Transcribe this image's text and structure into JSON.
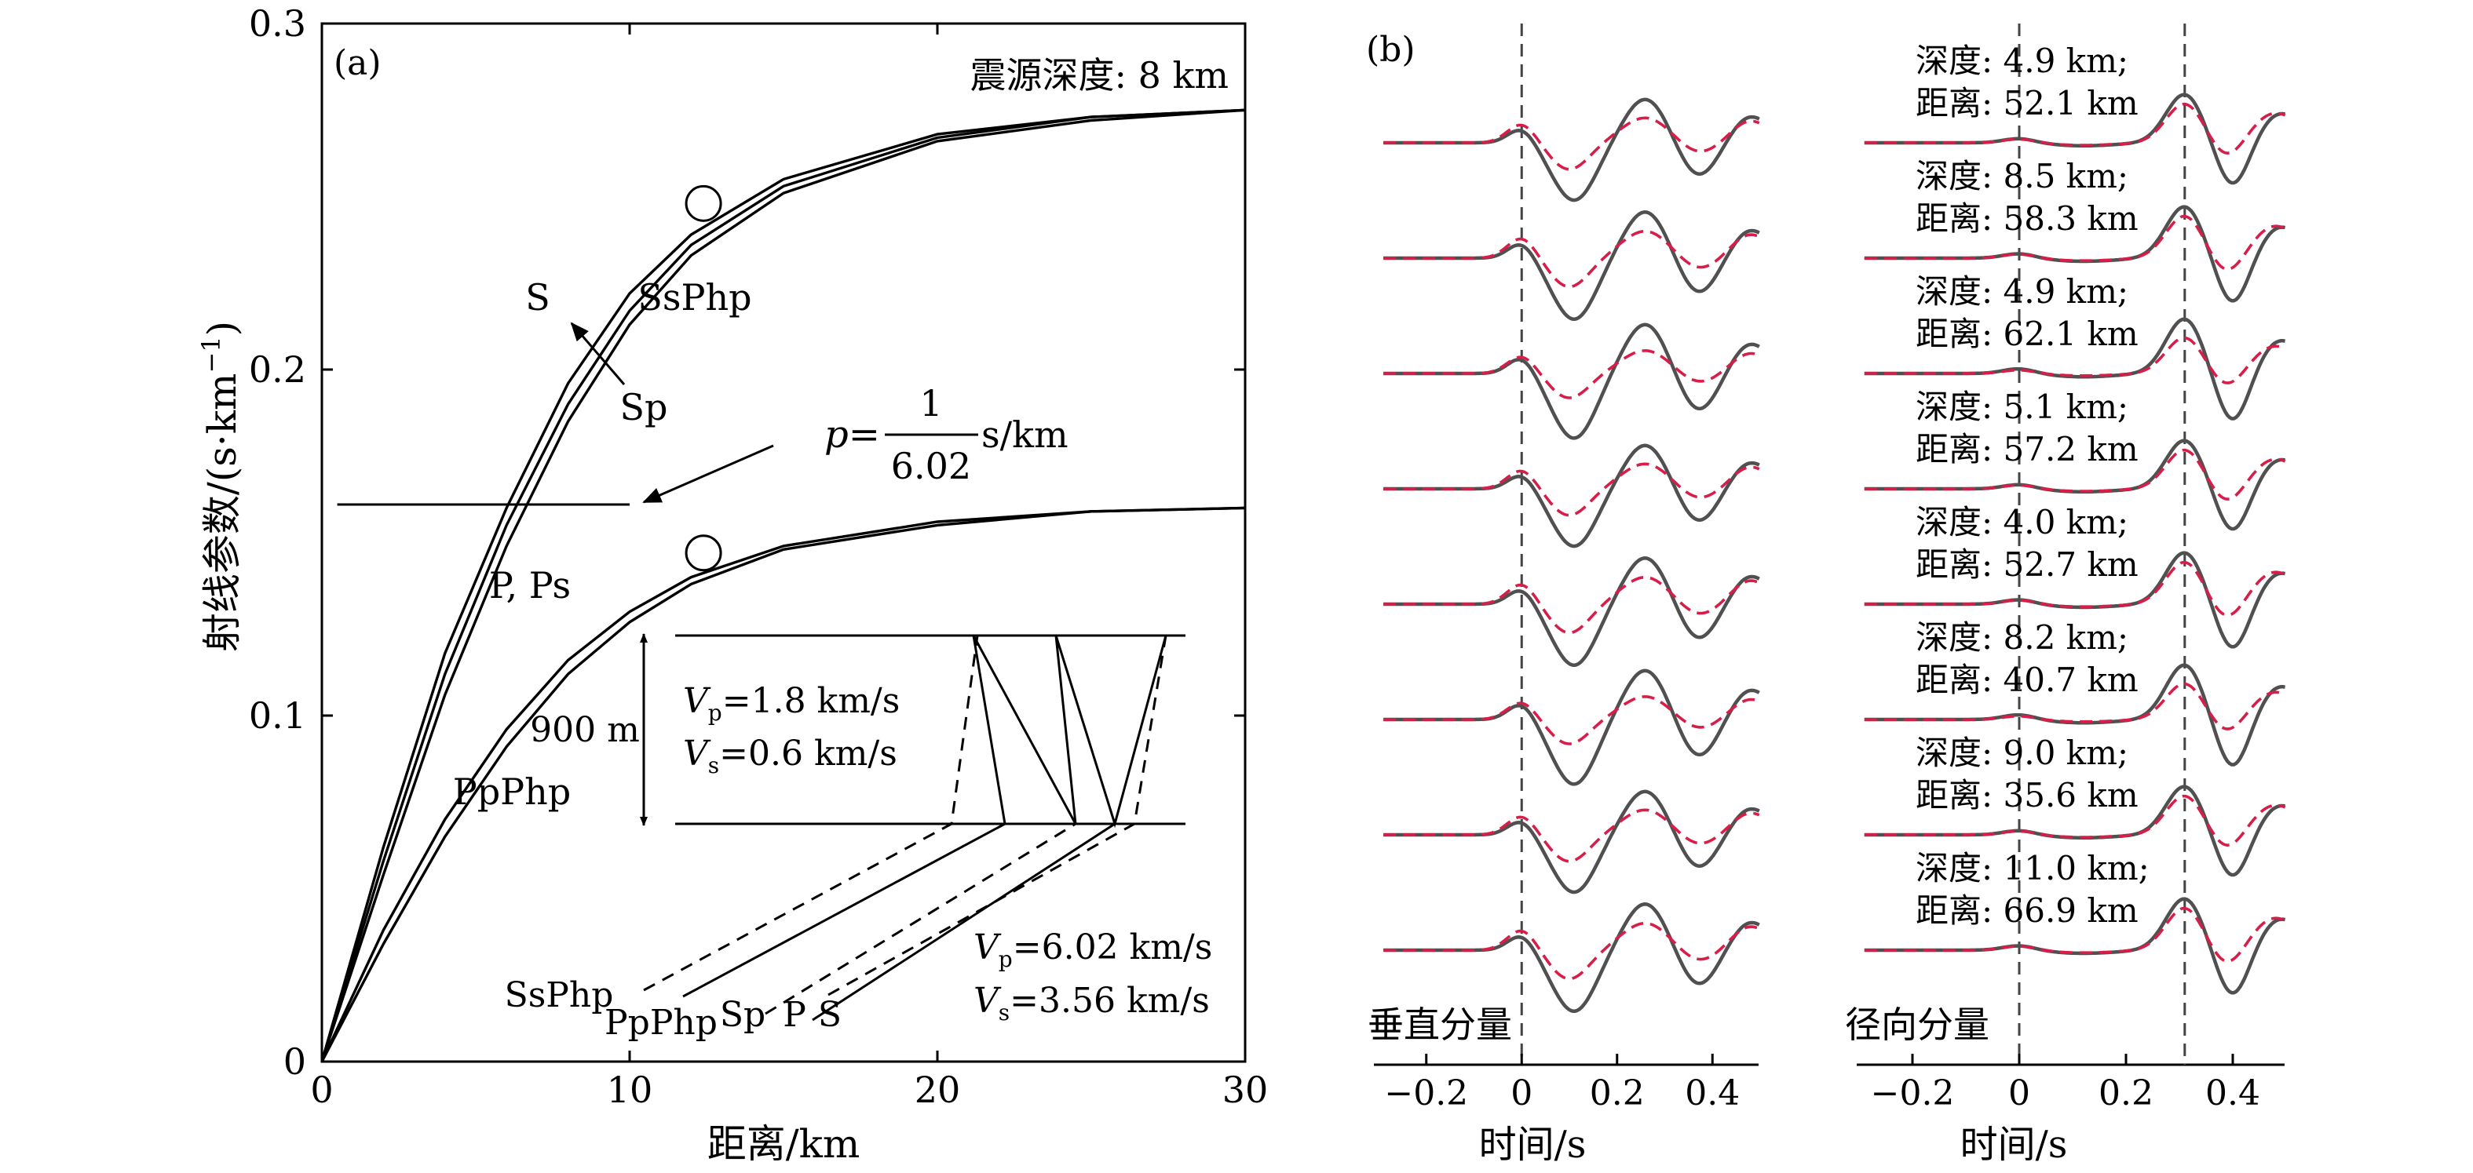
{
  "panel_a": {
    "label": "(a)",
    "source_depth": "震源深度: 8 km",
    "xlabel": "距离/km",
    "ylabel_text": "射线参数/(s·km",
    "ylabel_sup": "−1",
    "ylabel_close": ")",
    "curve_labels": {
      "s": "S",
      "ssphp": "SsPhp",
      "sp": "Sp",
      "pps": "P, Ps",
      "ppphp": "PpPhp"
    },
    "p_annot": {
      "prefix": "p=",
      "num": "1",
      "den": "6.02",
      "unit": "s/km"
    },
    "layer": {
      "thickness": "900 m",
      "vp_top_sym": "V",
      "vp_top_sub": "p",
      "vp_top_val": "=1.8 km/s",
      "vs_top_sym": "V",
      "vs_top_sub": "s",
      "vs_top_val": "=0.6 km/s",
      "vp_bot_sym": "V",
      "vp_bot_sub": "p",
      "vp_bot_val": "=6.02 km/s",
      "vs_bot_sym": "V",
      "vs_bot_sub": "s",
      "vs_bot_val": "=3.56 km/s"
    },
    "ray_labels": [
      "SsPhp",
      "PpPhp",
      "Sp",
      "P",
      "S"
    ]
  },
  "panel_b": {
    "label": "(b)",
    "xlabel": "时间/s",
    "vertical_label": "垂直分量",
    "radial_label": "径向分量",
    "colors": {
      "synthetic": "#505050",
      "observed": "#d81e48"
    },
    "traces": [
      {
        "depth": "深度: 4.9 km;",
        "dist": "距离: 52.1 km"
      },
      {
        "depth": "深度: 8.5 km;",
        "dist": "距离: 58.3 km"
      },
      {
        "depth": "深度: 4.9 km;",
        "dist": "距离: 62.1 km"
      },
      {
        "depth": "深度: 5.1 km;",
        "dist": "距离: 57.2 km"
      },
      {
        "depth": "深度: 4.0 km;",
        "dist": "距离: 52.7 km"
      },
      {
        "depth": "深度: 8.2 km;",
        "dist": "距离: 40.7 km"
      },
      {
        "depth": "深度: 9.0 km;",
        "dist": "距离: 35.6 km"
      },
      {
        "depth": "深度: 11.0 km;",
        "dist": "距离: 66.9 km"
      }
    ]
  },
  "chart_data": [
    {
      "type": "line",
      "panel": "(a)",
      "xlabel": "距离/km",
      "ylabel": "射线参数/(s·km−1)",
      "xlim": [
        0,
        30
      ],
      "ylim": [
        0,
        0.3
      ],
      "xticks": [
        0,
        10,
        20,
        30
      ],
      "yticks": [
        0,
        0.1,
        0.2,
        0.3
      ],
      "grid": false,
      "series": [
        {
          "name": "S",
          "x": [
            0,
            2,
            4,
            6,
            8,
            10,
            12,
            15,
            20,
            25,
            30
          ],
          "y": [
            0,
            0.062,
            0.118,
            0.16,
            0.196,
            0.222,
            0.239,
            0.255,
            0.268,
            0.273,
            0.275
          ]
        },
        {
          "name": "Sp",
          "x": [
            0,
            2,
            4,
            6,
            8,
            10,
            12,
            15,
            20,
            25,
            30
          ],
          "y": [
            0,
            0.058,
            0.112,
            0.155,
            0.19,
            0.217,
            0.236,
            0.253,
            0.267,
            0.273,
            0.275
          ]
        },
        {
          "name": "SsPhp",
          "x": [
            0,
            2,
            4,
            6,
            8,
            10,
            12,
            15,
            20,
            25,
            30
          ],
          "y": [
            0,
            0.054,
            0.106,
            0.149,
            0.185,
            0.213,
            0.233,
            0.251,
            0.266,
            0.272,
            0.275
          ]
        },
        {
          "name": "P, Ps",
          "x": [
            0,
            2,
            4,
            6,
            8,
            10,
            12,
            15,
            20,
            25,
            30
          ],
          "y": [
            0,
            0.038,
            0.07,
            0.096,
            0.116,
            0.13,
            0.14,
            0.149,
            0.156,
            0.159,
            0.16
          ]
        },
        {
          "name": "PpPhp",
          "x": [
            0,
            2,
            4,
            6,
            8,
            10,
            12,
            15,
            20,
            25,
            30
          ],
          "y": [
            0,
            0.034,
            0.065,
            0.091,
            0.112,
            0.127,
            0.138,
            0.148,
            0.155,
            0.159,
            0.16
          ]
        }
      ],
      "reference_line": {
        "label": "p=1/6.02 s/km",
        "y": 0.161,
        "x_range": [
          0.5,
          10
        ]
      },
      "markers": [
        {
          "x": 12.4,
          "y": 0.248
        },
        {
          "x": 12.4,
          "y": 0.147
        }
      ]
    },
    {
      "type": "line",
      "panel": "(b) 垂直分量",
      "xlabel": "时间/s",
      "xlim": [
        -0.3,
        0.5
      ],
      "xticks": [
        -0.2,
        0,
        0.2,
        0.4
      ],
      "reference_time": 0,
      "series": [
        {
          "name": "synthetic",
          "color": "#505050"
        },
        {
          "name": "observed",
          "color": "#d81e48"
        }
      ],
      "trace_count": 8
    },
    {
      "type": "line",
      "panel": "(b) 径向分量",
      "xlabel": "时间/s",
      "xlim": [
        -0.3,
        0.5
      ],
      "xticks": [
        -0.2,
        0,
        0.2,
        0.4
      ],
      "reference_times": [
        0,
        0.31
      ],
      "series": [
        {
          "name": "synthetic",
          "color": "#505050"
        },
        {
          "name": "observed",
          "color": "#d81e48"
        }
      ],
      "trace_count": 8
    }
  ]
}
